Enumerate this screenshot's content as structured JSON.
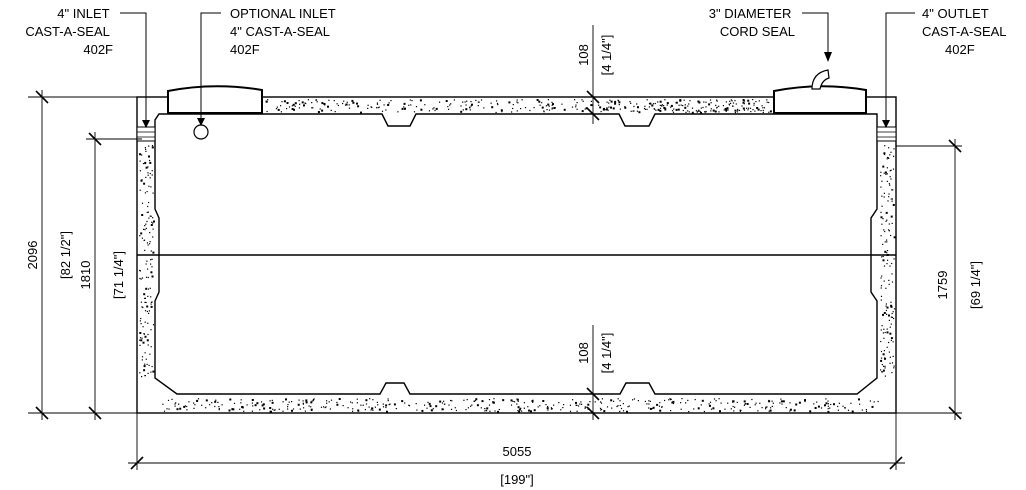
{
  "callouts": {
    "inlet": [
      "4\" INLET",
      "CAST-A-SEAL",
      "402F"
    ],
    "optional_inlet": [
      "OPTIONAL INLET",
      "4\" CAST-A-SEAL",
      "402F"
    ],
    "cord_seal": [
      "3\" DIAMETER",
      "CORD SEAL"
    ],
    "outlet": [
      "4\" OUTLET",
      "CAST-A-SEAL",
      "402F"
    ]
  },
  "dimensions": {
    "overall_height_mm": "2096",
    "overall_height_in": "[82 1/2\"]",
    "inlet_height_mm": "1810",
    "inlet_height_in": "[71 1/4\"]",
    "outlet_height_mm": "1759",
    "outlet_height_in": "[69 1/4\"]",
    "top_wall_mm": "108",
    "top_wall_in": "[4 1/4\"]",
    "bottom_wall_mm": "108",
    "bottom_wall_in": "[4 1/4\"]",
    "length_mm": "5055",
    "length_in": "[199\"]"
  }
}
